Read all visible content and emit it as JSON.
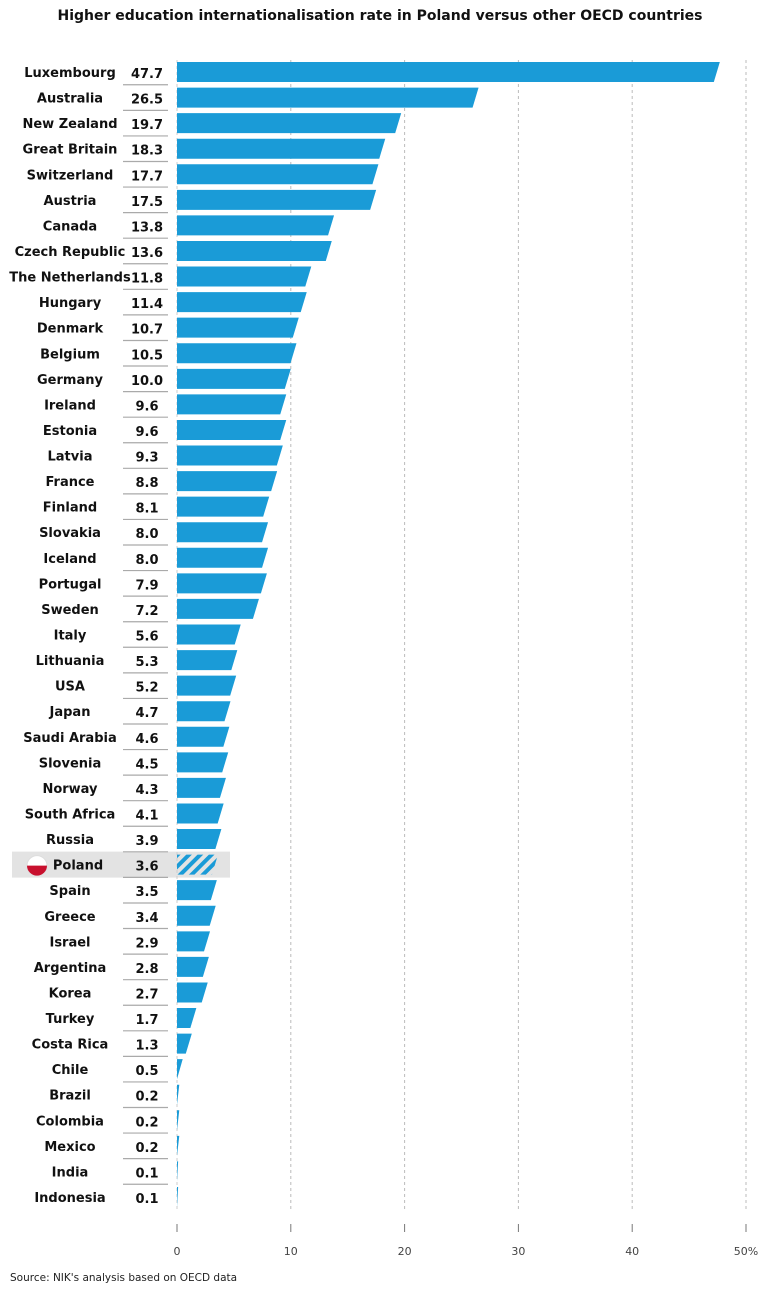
{
  "chart_data": {
    "type": "bar",
    "orientation": "horizontal",
    "title": "Higher education internationalisation rate in Poland versus other OECD countries",
    "categories": [
      "Luxembourg",
      "Australia",
      "New Zealand",
      "Great Britain",
      "Switzerland",
      "Austria",
      "Canada",
      "Czech Republic",
      "The Netherlands",
      "Hungary",
      "Denmark",
      "Belgium",
      "Germany",
      "Ireland",
      "Estonia",
      "Latvia",
      "France",
      "Finland",
      "Slovakia",
      "Iceland",
      "Portugal",
      "Sweden",
      "Italy",
      "Lithuania",
      "USA",
      "Japan",
      "Saudi Arabia",
      "Slovenia",
      "Norway",
      "South Africa",
      "Russia",
      "Poland",
      "Spain",
      "Greece",
      "Israel",
      "Argentina",
      "Korea",
      "Turkey",
      "Costa Rica",
      "Chile",
      "Brazil",
      "Colombia",
      "Mexico",
      "India",
      "Indonesia"
    ],
    "values": [
      47.7,
      26.5,
      19.7,
      18.3,
      17.7,
      17.5,
      13.8,
      13.6,
      11.8,
      11.4,
      10.7,
      10.5,
      10.0,
      9.6,
      9.6,
      9.3,
      8.8,
      8.1,
      8.0,
      8.0,
      7.9,
      7.2,
      5.6,
      5.3,
      5.2,
      4.7,
      4.6,
      4.5,
      4.3,
      4.1,
      3.9,
      3.6,
      3.5,
      3.4,
      2.9,
      2.8,
      2.7,
      1.7,
      1.3,
      0.5,
      0.2,
      0.2,
      0.2,
      0.1,
      0.1
    ],
    "value_labels": [
      "47.7",
      "26.5",
      "19.7",
      "18.3",
      "17.7",
      "17.5",
      "13.8",
      "13.6",
      "11.8",
      "11.4",
      "10.7",
      "10.5",
      "10.0",
      "9.6",
      "9.6",
      "9.3",
      "8.8",
      "8.1",
      "8.0",
      "8.0",
      "7.9",
      "7.2",
      "5.6",
      "5.3",
      "5.2",
      "4.7",
      "4.6",
      "4.5",
      "4.3",
      "4.1",
      "3.9",
      "3.6",
      "3.5",
      "3.4",
      "2.9",
      "2.8",
      "2.7",
      "1.7",
      "1.3",
      "0.5",
      "0.2",
      "0.2",
      "0.2",
      "0.1",
      "0.1"
    ],
    "highlight": "Poland",
    "xlim": [
      0,
      50
    ],
    "xticks": [
      "0",
      "10",
      "20",
      "30",
      "40",
      "50%"
    ],
    "grid": "vertical dashed",
    "colors": {
      "bar": "#1a9bd7",
      "highlight_bg": "#e3e3e3",
      "flag_white": "#ffffff",
      "flag_red": "#c8102e"
    }
  },
  "source": "Source: NIK's analysis based on OECD data"
}
